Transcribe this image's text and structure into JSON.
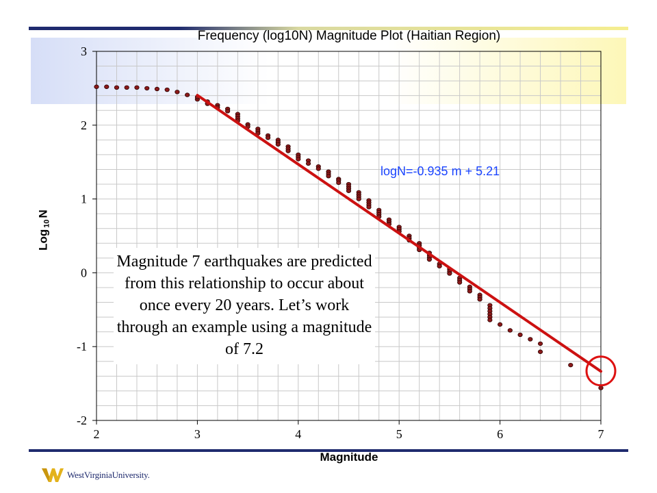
{
  "chart_data": {
    "type": "scatter",
    "title": "Frequency (log10N) Magnitude Plot (Haitian Region)",
    "xlabel": "Magnitude",
    "ylabel_main": "Log",
    "ylabel_sub": "10",
    "ylabel_tail": "N",
    "xlim": [
      2,
      7
    ],
    "ylim": [
      -2,
      3
    ],
    "x_ticks": [
      2,
      3,
      4,
      5,
      6,
      7
    ],
    "y_ticks": [
      -2,
      -1,
      0,
      1,
      2,
      3
    ],
    "grid": true,
    "x_minor_step": 0.2,
    "y_minor_step": 0.2,
    "points": [
      [
        2.0,
        2.52
      ],
      [
        2.1,
        2.52
      ],
      [
        2.2,
        2.51
      ],
      [
        2.3,
        2.51
      ],
      [
        2.4,
        2.51
      ],
      [
        2.5,
        2.5
      ],
      [
        2.6,
        2.49
      ],
      [
        2.7,
        2.48
      ],
      [
        2.8,
        2.45
      ],
      [
        2.9,
        2.41
      ],
      [
        3.0,
        2.35
      ],
      [
        3.0,
        2.38
      ],
      [
        3.1,
        2.32
      ],
      [
        3.1,
        2.29
      ],
      [
        3.2,
        2.27
      ],
      [
        3.2,
        2.24
      ],
      [
        3.3,
        2.22
      ],
      [
        3.3,
        2.19
      ],
      [
        3.4,
        2.15
      ],
      [
        3.4,
        2.12
      ],
      [
        3.4,
        2.09
      ],
      [
        3.4,
        2.06
      ],
      [
        3.5,
        2.01
      ],
      [
        3.5,
        1.98
      ],
      [
        3.6,
        1.95
      ],
      [
        3.6,
        1.92
      ],
      [
        3.6,
        1.89
      ],
      [
        3.7,
        1.86
      ],
      [
        3.7,
        1.83
      ],
      [
        3.8,
        1.8
      ],
      [
        3.8,
        1.77
      ],
      [
        3.8,
        1.74
      ],
      [
        3.9,
        1.71
      ],
      [
        3.9,
        1.68
      ],
      [
        3.9,
        1.65
      ],
      [
        4.0,
        1.6
      ],
      [
        4.0,
        1.57
      ],
      [
        4.0,
        1.54
      ],
      [
        4.1,
        1.52
      ],
      [
        4.1,
        1.48
      ],
      [
        4.2,
        1.44
      ],
      [
        4.2,
        1.41
      ],
      [
        4.3,
        1.37
      ],
      [
        4.3,
        1.34
      ],
      [
        4.3,
        1.31
      ],
      [
        4.4,
        1.27
      ],
      [
        4.4,
        1.25
      ],
      [
        4.4,
        1.22
      ],
      [
        4.5,
        1.2
      ],
      [
        4.5,
        1.17
      ],
      [
        4.5,
        1.14
      ],
      [
        4.5,
        1.11
      ],
      [
        4.6,
        1.09
      ],
      [
        4.6,
        1.06
      ],
      [
        4.6,
        1.03
      ],
      [
        4.6,
        1.0
      ],
      [
        4.7,
        0.98
      ],
      [
        4.7,
        0.95
      ],
      [
        4.7,
        0.92
      ],
      [
        4.7,
        0.89
      ],
      [
        4.8,
        0.85
      ],
      [
        4.8,
        0.82
      ],
      [
        4.8,
        0.79
      ],
      [
        4.8,
        0.76
      ],
      [
        4.9,
        0.72
      ],
      [
        4.9,
        0.69
      ],
      [
        4.9,
        0.66
      ],
      [
        5.0,
        0.62
      ],
      [
        5.0,
        0.59
      ],
      [
        5.0,
        0.56
      ],
      [
        5.1,
        0.5
      ],
      [
        5.1,
        0.47
      ],
      [
        5.1,
        0.44
      ],
      [
        5.2,
        0.4
      ],
      [
        5.2,
        0.37
      ],
      [
        5.2,
        0.34
      ],
      [
        5.2,
        0.31
      ],
      [
        5.3,
        0.27
      ],
      [
        5.3,
        0.24
      ],
      [
        5.3,
        0.21
      ],
      [
        5.3,
        0.18
      ],
      [
        5.4,
        0.12
      ],
      [
        5.4,
        0.09
      ],
      [
        5.5,
        0.05
      ],
      [
        5.5,
        0.02
      ],
      [
        5.5,
        -0.01
      ],
      [
        5.6,
        -0.07
      ],
      [
        5.6,
        -0.1
      ],
      [
        5.6,
        -0.13
      ],
      [
        5.7,
        -0.19
      ],
      [
        5.7,
        -0.22
      ],
      [
        5.7,
        -0.25
      ],
      [
        5.8,
        -0.3
      ],
      [
        5.8,
        -0.33
      ],
      [
        5.8,
        -0.36
      ],
      [
        5.9,
        -0.44
      ],
      [
        5.9,
        -0.48
      ],
      [
        5.9,
        -0.52
      ],
      [
        5.9,
        -0.56
      ],
      [
        5.9,
        -0.6
      ],
      [
        5.9,
        -0.64
      ],
      [
        6.0,
        -0.7
      ],
      [
        6.1,
        -0.78
      ],
      [
        6.2,
        -0.84
      ],
      [
        6.3,
        -0.9
      ],
      [
        6.4,
        -0.96
      ],
      [
        6.4,
        -1.07
      ],
      [
        6.7,
        -1.25
      ],
      [
        7.0,
        -1.56
      ]
    ],
    "fit_line": {
      "x1": 3.0,
      "x2": 7.0,
      "slope": -0.935,
      "intercept": 5.21
    },
    "fit_label": "logN=-0.935 m + 5.21",
    "highlight_circle_at": [
      7.0,
      -1.33
    ],
    "colors": {
      "point_fill": "#8b1a1a",
      "point_stroke": "#2a0000",
      "fit_line": "#cc1111",
      "circle": "#dd1111",
      "grid": "#c8c8c8",
      "equation": "#1a44ff"
    }
  },
  "annotation": {
    "text": "Magnitude 7 earthquakes are predicted from this relationship to occur about once every 20 years. Let’s work through an example using a magnitude of 7.2"
  },
  "logo": {
    "text": "WestVirginiaUniversity."
  }
}
